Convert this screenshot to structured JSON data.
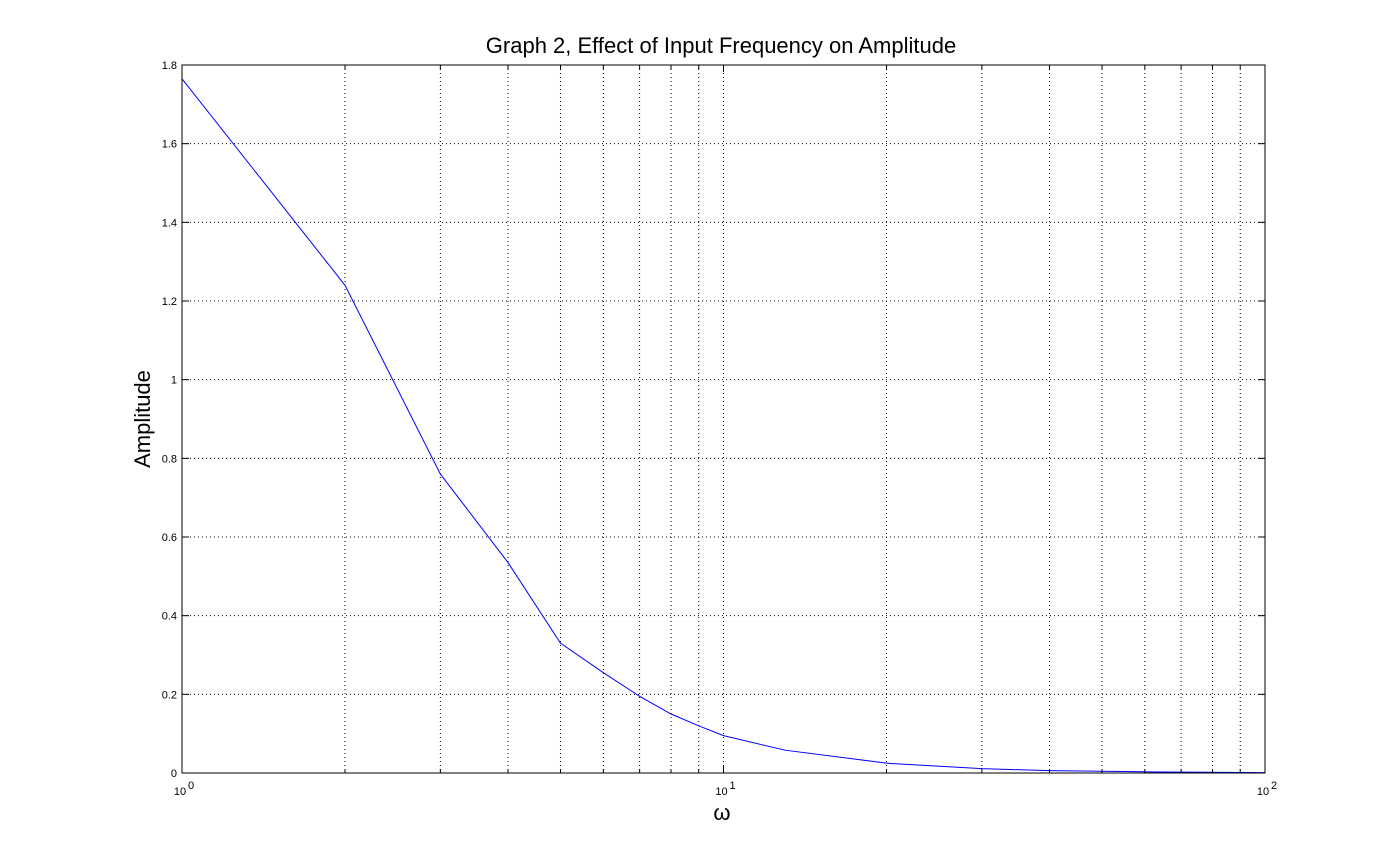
{
  "chart_data": {
    "type": "line",
    "title": "Graph 2, Effect of Input Frequency on Amplitude",
    "xlabel": "ω",
    "ylabel": "Amplitude",
    "xscale": "log",
    "xlim": [
      1,
      100
    ],
    "ylim": [
      0,
      1.8
    ],
    "grid": true,
    "line_color": "#0000ff",
    "x_ticks": [
      {
        "value": 1,
        "base": "10",
        "exp": "0"
      },
      {
        "value": 10,
        "base": "10",
        "exp": "1"
      },
      {
        "value": 100,
        "base": "10",
        "exp": "2"
      }
    ],
    "y_ticks": [
      {
        "value": 0,
        "label": "0"
      },
      {
        "value": 0.2,
        "label": "0.2"
      },
      {
        "value": 0.4,
        "label": "0.4"
      },
      {
        "value": 0.6,
        "label": "0.6"
      },
      {
        "value": 0.8,
        "label": "0.8"
      },
      {
        "value": 1.0,
        "label": "1"
      },
      {
        "value": 1.2,
        "label": "1.2"
      },
      {
        "value": 1.4,
        "label": "1.4"
      },
      {
        "value": 1.6,
        "label": "1.6"
      },
      {
        "value": 1.8,
        "label": "1.8"
      }
    ],
    "series": [
      {
        "x": [
          1,
          2,
          3,
          4,
          5,
          6,
          7,
          8,
          9,
          10,
          13,
          20,
          30,
          40,
          60,
          100
        ],
        "y": [
          1.765,
          1.24,
          0.76,
          0.535,
          0.33,
          0.255,
          0.195,
          0.15,
          0.12,
          0.095,
          0.058,
          0.025,
          0.011,
          0.006,
          0.003,
          0.001
        ]
      }
    ]
  }
}
